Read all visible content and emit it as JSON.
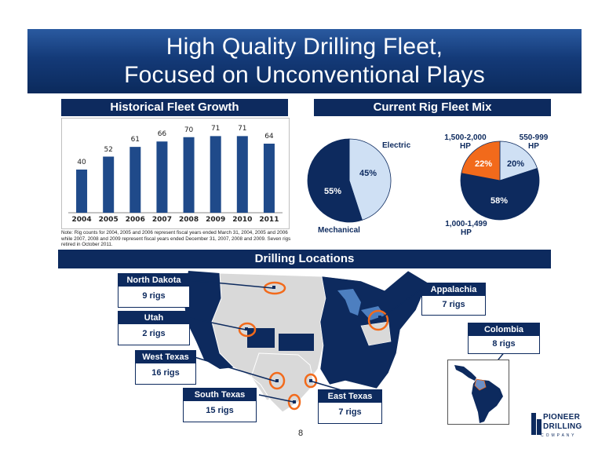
{
  "title": {
    "line1": "High Quality Drilling Fleet,",
    "line2": "Focused on Unconventional Plays"
  },
  "fleet_growth": {
    "header": "Historical Fleet Growth",
    "note": "Note: Rig counts for 2004, 2005 and 2006 represent fiscal years ended March 31, 2004, 2005 and 2006 while 2007, 2008 and 2009 represent fiscal years ended December 31, 2007, 2008 and 2009. Seven rigs retired in October 2011."
  },
  "chart_data": [
    {
      "type": "bar",
      "categories": [
        "2004",
        "2005",
        "2006",
        "2007",
        "2008",
        "2009",
        "2010",
        "2011"
      ],
      "values": [
        40,
        52,
        61,
        66,
        70,
        71,
        71,
        64
      ],
      "data_labels": [
        "40",
        "52",
        "61",
        "66",
        "70",
        "71",
        "71",
        "64"
      ],
      "title": "",
      "xlabel": "",
      "ylabel": "",
      "ylim": [
        0,
        80
      ],
      "grid": false,
      "bar_color": "#1f4a8a"
    },
    {
      "type": "pie",
      "labels": [
        "Electric",
        "Mechanical"
      ],
      "values": [
        45,
        55
      ],
      "value_labels": [
        "45%",
        "55%"
      ],
      "colors": [
        "#cfe0f4",
        "#0d2a5e"
      ]
    },
    {
      "type": "pie",
      "labels": [
        "550-999 HP",
        "1,000-1,499 HP",
        "1,500-2,000 HP"
      ],
      "values": [
        20,
        58,
        22
      ],
      "value_labels": [
        "20%",
        "58%",
        "22%"
      ],
      "colors": [
        "#cfe0f4",
        "#0d2a5e",
        "#f26a1b"
      ]
    }
  ],
  "rig_mix": {
    "header": "Current Rig Fleet Mix",
    "electric": "Electric",
    "mechanical": "Mechanical",
    "hp_1500_l1": "1,500-2,000",
    "hp_1500_l2": "HP",
    "hp_550_l1": "550-999",
    "hp_550_l2": "HP",
    "hp_1000_l1": "1,000-1,499",
    "hp_1000_l2": "HP"
  },
  "locations": {
    "header": "Drilling Locations",
    "north_dakota": {
      "name": "North Dakota",
      "rigs": "9 rigs"
    },
    "utah": {
      "name": "Utah",
      "rigs": "2 rigs"
    },
    "west_texas": {
      "name": "West Texas",
      "rigs": "16 rigs"
    },
    "south_texas": {
      "name": "South Texas",
      "rigs": "15 rigs"
    },
    "east_texas": {
      "name": "East Texas",
      "rigs": "7 rigs"
    },
    "appalachia": {
      "name": "Appalachia",
      "rigs": "7 rigs"
    },
    "colombia": {
      "name": "Colombia",
      "rigs": "8 rigs"
    }
  },
  "page_number": "8",
  "logo": {
    "line1": "PIONEER",
    "line2": "DRILLING",
    "line3": "C O M P A N Y"
  },
  "colors": {
    "navy": "#0d2a5e",
    "orange": "#f26a1b",
    "light_blue": "#cfe0f4"
  }
}
